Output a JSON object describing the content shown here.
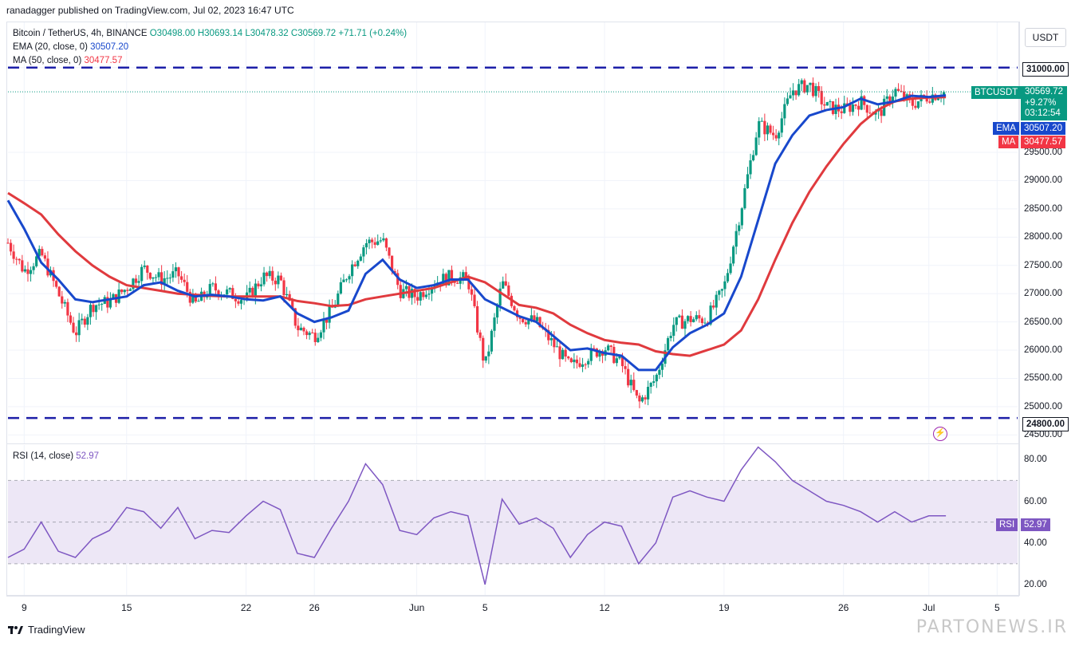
{
  "publisher_line": "ranadagger published on TradingView.com, Jul 02, 2023 16:47 UTC",
  "symbol": {
    "title": "Bitcoin / TetherUS, 4h, BINANCE",
    "open": "O30498.00",
    "high": "H30693.14",
    "low": "L30478.32",
    "close": "C30569.72",
    "change": "+71.71 (+0.24%)"
  },
  "indicators": {
    "ema_label": "EMA (20, close, 0)",
    "ema_value": "30507.20",
    "ma_label": "MA (50, close, 0)",
    "ma_value": "30477.57",
    "rsi_label": "RSI (14, close)",
    "rsi_value": "52.97"
  },
  "currency_button": "USDT",
  "price_tags": {
    "ticker": "BTCUSDT",
    "price": "30569.72",
    "pct": "+9.27%",
    "countdown": "03:12:54",
    "ema_tag": "EMA",
    "ema_value": "30507.20",
    "ma_tag": "MA",
    "ma_value": "30477.57",
    "rsi_tag": "RSI",
    "rsi_value": "52.97",
    "resistance": "31000.00",
    "support": "24800.00"
  },
  "footer": {
    "brand": "TradingView"
  },
  "watermark": "PARTONEWS.IR",
  "colors": {
    "up": "#089981",
    "down": "#f23645",
    "ema": "#1848cc",
    "ma": "#e03a3e",
    "rsi": "#7e57c2",
    "level_line": "#1d1fa8",
    "rsi_band": "#ede7f6"
  },
  "chart_data": [
    {
      "type": "candlestick",
      "title": "Bitcoin / TetherUS, 4h, BINANCE",
      "y_ticks": [
        24500,
        25000,
        25500,
        26000,
        26500,
        27000,
        27500,
        28000,
        28500,
        29000,
        29500,
        31000
      ],
      "ylim": [
        24350,
        31800
      ],
      "x_ticks": [
        "9",
        "15",
        "22",
        "26",
        "Jun",
        "5",
        "12",
        "19",
        "26",
        "Jul",
        "5"
      ],
      "x_tick_days": [
        9,
        15,
        22,
        26,
        32,
        36,
        43,
        50,
        57,
        62,
        66
      ],
      "x_range_days": [
        8.05,
        67.2
      ],
      "horizontal_levels": [
        31000,
        24800
      ],
      "series": [
        {
          "name": "EMA (20, close, 0)",
          "points": [
            [
              8.05,
              28650
            ],
            [
              9,
              28150
            ],
            [
              10,
              27550
            ],
            [
              11,
              27250
            ],
            [
              12,
              26900
            ],
            [
              13,
              26850
            ],
            [
              14,
              26900
            ],
            [
              15,
              26950
            ],
            [
              16,
              27150
            ],
            [
              17,
              27200
            ],
            [
              18,
              27050
            ],
            [
              19,
              26950
            ],
            [
              20,
              26980
            ],
            [
              21,
              26950
            ],
            [
              22,
              26900
            ],
            [
              23,
              26880
            ],
            [
              24,
              26950
            ],
            [
              25,
              26650
            ],
            [
              26,
              26500
            ],
            [
              27,
              26580
            ],
            [
              28,
              26700
            ],
            [
              29,
              27350
            ],
            [
              30,
              27600
            ],
            [
              31,
              27250
            ],
            [
              32,
              27100
            ],
            [
              33,
              27150
            ],
            [
              34,
              27250
            ],
            [
              35,
              27250
            ],
            [
              36,
              26900
            ],
            [
              37,
              26750
            ],
            [
              38,
              26600
            ],
            [
              39,
              26500
            ],
            [
              40,
              26250
            ],
            [
              41,
              26000
            ],
            [
              42,
              26030
            ],
            [
              43,
              25950
            ],
            [
              44,
              25900
            ],
            [
              45,
              25650
            ],
            [
              46,
              25650
            ],
            [
              47,
              26050
            ],
            [
              48,
              26300
            ],
            [
              49,
              26450
            ],
            [
              50,
              26650
            ],
            [
              51,
              27300
            ],
            [
              52,
              28300
            ],
            [
              53,
              29300
            ],
            [
              54,
              29800
            ],
            [
              55,
              30150
            ],
            [
              56,
              30250
            ],
            [
              57,
              30300
            ],
            [
              58,
              30450
            ],
            [
              59,
              30350
            ],
            [
              60,
              30400
            ],
            [
              61,
              30500
            ],
            [
              62,
              30480
            ],
            [
              63,
              30507
            ]
          ]
        },
        {
          "name": "MA (50, close, 0)",
          "points": [
            [
              8.05,
              28780
            ],
            [
              9,
              28600
            ],
            [
              10,
              28400
            ],
            [
              11,
              28050
            ],
            [
              12,
              27750
            ],
            [
              13,
              27500
            ],
            [
              14,
              27300
            ],
            [
              15,
              27150
            ],
            [
              16,
              27100
            ],
            [
              17,
              27050
            ],
            [
              18,
              27000
            ],
            [
              19,
              26980
            ],
            [
              20,
              26960
            ],
            [
              21,
              26950
            ],
            [
              22,
              26950
            ],
            [
              23,
              26950
            ],
            [
              24,
              26950
            ],
            [
              25,
              26870
            ],
            [
              26,
              26830
            ],
            [
              27,
              26780
            ],
            [
              28,
              26800
            ],
            [
              29,
              26900
            ],
            [
              30,
              26950
            ],
            [
              31,
              27000
            ],
            [
              32,
              27050
            ],
            [
              33,
              27100
            ],
            [
              34,
              27200
            ],
            [
              35,
              27300
            ],
            [
              36,
              27200
            ],
            [
              37,
              27000
            ],
            [
              38,
              26800
            ],
            [
              39,
              26750
            ],
            [
              40,
              26650
            ],
            [
              41,
              26450
            ],
            [
              42,
              26300
            ],
            [
              43,
              26180
            ],
            [
              44,
              26130
            ],
            [
              45,
              26100
            ],
            [
              46,
              25980
            ],
            [
              47,
              25930
            ],
            [
              48,
              25900
            ],
            [
              49,
              26000
            ],
            [
              50,
              26100
            ],
            [
              51,
              26350
            ],
            [
              52,
              26900
            ],
            [
              53,
              27600
            ],
            [
              54,
              28250
            ],
            [
              55,
              28800
            ],
            [
              56,
              29250
            ],
            [
              57,
              29650
            ],
            [
              58,
              30000
            ],
            [
              59,
              30250
            ],
            [
              60,
              30400
            ],
            [
              61,
              30450
            ],
            [
              62,
              30470
            ],
            [
              63,
              30478
            ]
          ]
        },
        {
          "name": "Price (close, approx.)",
          "points": [
            [
              8.05,
              27900
            ],
            [
              9,
              27400
            ],
            [
              10,
              27700
            ],
            [
              11,
              27000
            ],
            [
              12,
              26300
            ],
            [
              13,
              26800
            ],
            [
              14,
              26850
            ],
            [
              15,
              27100
            ],
            [
              16,
              27450
            ],
            [
              17,
              27250
            ],
            [
              18,
              27350
            ],
            [
              19,
              26800
            ],
            [
              20,
              27100
            ],
            [
              21,
              27000
            ],
            [
              22,
              26900
            ],
            [
              23,
              27300
            ],
            [
              24,
              27250
            ],
            [
              25,
              26400
            ],
            [
              26,
              26250
            ],
            [
              27,
              26700
            ],
            [
              28,
              27400
            ],
            [
              29,
              27900
            ],
            [
              30,
              27950
            ],
            [
              31,
              27050
            ],
            [
              32,
              26950
            ],
            [
              33,
              27200
            ],
            [
              34,
              27300
            ],
            [
              35,
              27250
            ],
            [
              36,
              25700
            ],
            [
              37,
              27200
            ],
            [
              38,
              26600
            ],
            [
              39,
              26500
            ],
            [
              40,
              26100
            ],
            [
              41,
              25700
            ],
            [
              42,
              25900
            ],
            [
              43,
              26050
            ],
            [
              44,
              25750
            ],
            [
              45,
              25050
            ],
            [
              46,
              25500
            ],
            [
              47,
              26450
            ],
            [
              48,
              26550
            ],
            [
              49,
              26550
            ],
            [
              50,
              27100
            ],
            [
              51,
              28500
            ],
            [
              52,
              30000
            ],
            [
              53,
              29800
            ],
            [
              54,
              30600
            ],
            [
              55,
              30700
            ],
            [
              56,
              30300
            ],
            [
              57,
              30250
            ],
            [
              58,
              30400
            ],
            [
              59,
              30150
            ],
            [
              60,
              30600
            ],
            [
              61,
              30350
            ],
            [
              62,
              30500
            ],
            [
              63,
              30570
            ]
          ]
        }
      ]
    },
    {
      "type": "line",
      "title": "RSI (14, close)",
      "y_ticks": [
        20,
        40,
        60,
        80
      ],
      "ylim": [
        15,
        87
      ],
      "bands": [
        30,
        50,
        70
      ],
      "series": [
        {
          "name": "RSI (14, close)",
          "points": [
            [
              8.05,
              33
            ],
            [
              9,
              37
            ],
            [
              10,
              50
            ],
            [
              11,
              36
            ],
            [
              12,
              33
            ],
            [
              13,
              42
            ],
            [
              14,
              46
            ],
            [
              15,
              57
            ],
            [
              16,
              55
            ],
            [
              17,
              47
            ],
            [
              18,
              57
            ],
            [
              19,
              42
            ],
            [
              20,
              46
            ],
            [
              21,
              45
            ],
            [
              22,
              53
            ],
            [
              23,
              60
            ],
            [
              24,
              56
            ],
            [
              25,
              35
            ],
            [
              26,
              33
            ],
            [
              27,
              47
            ],
            [
              28,
              60
            ],
            [
              29,
              78
            ],
            [
              30,
              68
            ],
            [
              31,
              46
            ],
            [
              32,
              44
            ],
            [
              33,
              52
            ],
            [
              34,
              55
            ],
            [
              35,
              53
            ],
            [
              36,
              20
            ],
            [
              37,
              61
            ],
            [
              38,
              49
            ],
            [
              39,
              52
            ],
            [
              40,
              47
            ],
            [
              41,
              33
            ],
            [
              42,
              44
            ],
            [
              43,
              50
            ],
            [
              44,
              48
            ],
            [
              45,
              30
            ],
            [
              46,
              40
            ],
            [
              47,
              62
            ],
            [
              48,
              65
            ],
            [
              49,
              62
            ],
            [
              50,
              60
            ],
            [
              51,
              75
            ],
            [
              52,
              86
            ],
            [
              53,
              79
            ],
            [
              54,
              70
            ],
            [
              55,
              65
            ],
            [
              56,
              60
            ],
            [
              57,
              58
            ],
            [
              58,
              55
            ],
            [
              59,
              50
            ],
            [
              60,
              55
            ],
            [
              61,
              50
            ],
            [
              62,
              53
            ],
            [
              63,
              53
            ]
          ]
        }
      ]
    }
  ]
}
